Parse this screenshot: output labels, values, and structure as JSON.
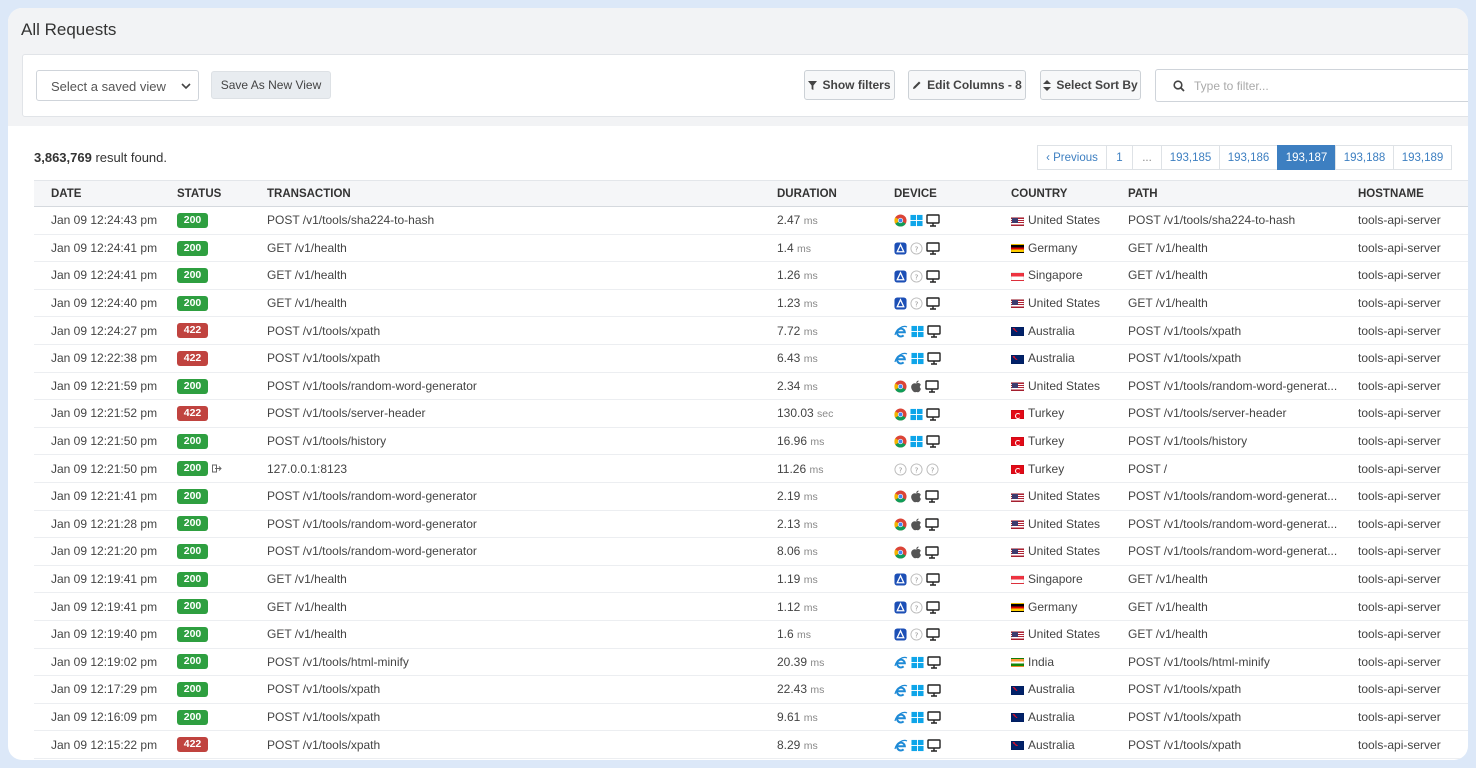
{
  "page": {
    "title": "All Requests"
  },
  "toolbar": {
    "saved_view_placeholder": "Select a saved view",
    "save_view_label": "Save As New View",
    "show_filters_label": "Show filters",
    "edit_columns_label": "Edit Columns - 8",
    "sort_label": "Select Sort By",
    "filter_placeholder": "Type to filter..."
  },
  "results": {
    "count": "3,863,769",
    "suffix": " result found."
  },
  "pagination": {
    "previous": "‹ Previous",
    "pages": [
      "1",
      "...",
      "193,185",
      "193,186",
      "193,187",
      "193,188",
      "193,189"
    ],
    "active": "193,187"
  },
  "table": {
    "columns": [
      "DATE",
      "STATUS",
      "TRANSACTION",
      "DURATION",
      "DEVICE",
      "COUNTRY",
      "PATH",
      "HOSTNAME"
    ],
    "rows": [
      {
        "date": "Jan 09 12:24:43 pm",
        "status": "200",
        "transaction": "POST /v1/tools/sha224-to-hash",
        "duration": "2.47",
        "unit": "ms",
        "device": [
          "chrome-icon",
          "windows-icon",
          "desktop-icon"
        ],
        "flag": "us",
        "country": "United States",
        "path": "POST /v1/tools/sha224-to-hash",
        "hostname": "tools-api-server"
      },
      {
        "date": "Jan 09 12:24:41 pm",
        "status": "200",
        "transaction": "GET /v1/health",
        "duration": "1.4",
        "unit": "ms",
        "device": [
          "app-icon",
          "unknown-icon",
          "desktop-icon"
        ],
        "flag": "de",
        "country": "Germany",
        "path": "GET /v1/health",
        "hostname": "tools-api-server"
      },
      {
        "date": "Jan 09 12:24:41 pm",
        "status": "200",
        "transaction": "GET /v1/health",
        "duration": "1.26",
        "unit": "ms",
        "device": [
          "app-icon",
          "unknown-icon",
          "desktop-icon"
        ],
        "flag": "sg",
        "country": "Singapore",
        "path": "GET /v1/health",
        "hostname": "tools-api-server"
      },
      {
        "date": "Jan 09 12:24:40 pm",
        "status": "200",
        "transaction": "GET /v1/health",
        "duration": "1.23",
        "unit": "ms",
        "device": [
          "app-icon",
          "unknown-icon",
          "desktop-icon"
        ],
        "flag": "us",
        "country": "United States",
        "path": "GET /v1/health",
        "hostname": "tools-api-server"
      },
      {
        "date": "Jan 09 12:24:27 pm",
        "status": "422",
        "transaction": "POST /v1/tools/xpath",
        "duration": "7.72",
        "unit": "ms",
        "device": [
          "ie-icon",
          "windows-icon",
          "desktop-icon"
        ],
        "flag": "au",
        "country": "Australia",
        "path": "POST /v1/tools/xpath",
        "hostname": "tools-api-server"
      },
      {
        "date": "Jan 09 12:22:38 pm",
        "status": "422",
        "transaction": "POST /v1/tools/xpath",
        "duration": "6.43",
        "unit": "ms",
        "device": [
          "ie-icon",
          "windows-icon",
          "desktop-icon"
        ],
        "flag": "au",
        "country": "Australia",
        "path": "POST /v1/tools/xpath",
        "hostname": "tools-api-server"
      },
      {
        "date": "Jan 09 12:21:59 pm",
        "status": "200",
        "transaction": "POST /v1/tools/random-word-generator",
        "duration": "2.34",
        "unit": "ms",
        "device": [
          "chrome-icon",
          "apple-icon",
          "desktop-icon"
        ],
        "flag": "us",
        "country": "United States",
        "path": "POST /v1/tools/random-word-generat...",
        "hostname": "tools-api-server"
      },
      {
        "date": "Jan 09 12:21:52 pm",
        "status": "422",
        "transaction": "POST /v1/tools/server-header",
        "duration": "130.03",
        "unit": "sec",
        "device": [
          "chrome-icon",
          "windows-icon",
          "desktop-icon"
        ],
        "flag": "tr",
        "country": "Turkey",
        "path": "POST /v1/tools/server-header",
        "hostname": "tools-api-server"
      },
      {
        "date": "Jan 09 12:21:50 pm",
        "status": "200",
        "transaction": "POST /v1/tools/history",
        "duration": "16.96",
        "unit": "ms",
        "device": [
          "chrome-icon",
          "windows-icon",
          "desktop-icon"
        ],
        "flag": "tr",
        "country": "Turkey",
        "path": "POST /v1/tools/history",
        "hostname": "tools-api-server"
      },
      {
        "date": "Jan 09 12:21:50 pm",
        "status": "200",
        "redirect": true,
        "transaction": "127.0.0.1:8123",
        "duration": "11.26",
        "unit": "ms",
        "device": [
          "unknown-icon",
          "unknown-icon",
          "unknown-icon"
        ],
        "flag": "tr",
        "country": "Turkey",
        "path": "POST /",
        "hostname": "tools-api-server"
      },
      {
        "date": "Jan 09 12:21:41 pm",
        "status": "200",
        "transaction": "POST /v1/tools/random-word-generator",
        "duration": "2.19",
        "unit": "ms",
        "device": [
          "chrome-icon",
          "apple-icon",
          "desktop-icon"
        ],
        "flag": "us",
        "country": "United States",
        "path": "POST /v1/tools/random-word-generat...",
        "hostname": "tools-api-server"
      },
      {
        "date": "Jan 09 12:21:28 pm",
        "status": "200",
        "transaction": "POST /v1/tools/random-word-generator",
        "duration": "2.13",
        "unit": "ms",
        "device": [
          "chrome-icon",
          "apple-icon",
          "desktop-icon"
        ],
        "flag": "us",
        "country": "United States",
        "path": "POST /v1/tools/random-word-generat...",
        "hostname": "tools-api-server"
      },
      {
        "date": "Jan 09 12:21:20 pm",
        "status": "200",
        "transaction": "POST /v1/tools/random-word-generator",
        "duration": "8.06",
        "unit": "ms",
        "device": [
          "chrome-icon",
          "apple-icon",
          "desktop-icon"
        ],
        "flag": "us",
        "country": "United States",
        "path": "POST /v1/tools/random-word-generat...",
        "hostname": "tools-api-server"
      },
      {
        "date": "Jan 09 12:19:41 pm",
        "status": "200",
        "transaction": "GET /v1/health",
        "duration": "1.19",
        "unit": "ms",
        "device": [
          "app-icon",
          "unknown-icon",
          "desktop-icon"
        ],
        "flag": "sg",
        "country": "Singapore",
        "path": "GET /v1/health",
        "hostname": "tools-api-server"
      },
      {
        "date": "Jan 09 12:19:41 pm",
        "status": "200",
        "transaction": "GET /v1/health",
        "duration": "1.12",
        "unit": "ms",
        "device": [
          "app-icon",
          "unknown-icon",
          "desktop-icon"
        ],
        "flag": "de",
        "country": "Germany",
        "path": "GET /v1/health",
        "hostname": "tools-api-server"
      },
      {
        "date": "Jan 09 12:19:40 pm",
        "status": "200",
        "transaction": "GET /v1/health",
        "duration": "1.6",
        "unit": "ms",
        "device": [
          "app-icon",
          "unknown-icon",
          "desktop-icon"
        ],
        "flag": "us",
        "country": "United States",
        "path": "GET /v1/health",
        "hostname": "tools-api-server"
      },
      {
        "date": "Jan 09 12:19:02 pm",
        "status": "200",
        "transaction": "POST /v1/tools/html-minify",
        "duration": "20.39",
        "unit": "ms",
        "device": [
          "ie-icon",
          "windows-icon",
          "desktop-icon"
        ],
        "flag": "in",
        "country": "India",
        "path": "POST /v1/tools/html-minify",
        "hostname": "tools-api-server"
      },
      {
        "date": "Jan 09 12:17:29 pm",
        "status": "200",
        "transaction": "POST /v1/tools/xpath",
        "duration": "22.43",
        "unit": "ms",
        "device": [
          "ie-icon",
          "windows-icon",
          "desktop-icon"
        ],
        "flag": "au",
        "country": "Australia",
        "path": "POST /v1/tools/xpath",
        "hostname": "tools-api-server"
      },
      {
        "date": "Jan 09 12:16:09 pm",
        "status": "200",
        "transaction": "POST /v1/tools/xpath",
        "duration": "9.61",
        "unit": "ms",
        "device": [
          "ie-icon",
          "windows-icon",
          "desktop-icon"
        ],
        "flag": "au",
        "country": "Australia",
        "path": "POST /v1/tools/xpath",
        "hostname": "tools-api-server"
      },
      {
        "date": "Jan 09 12:15:22 pm",
        "status": "422",
        "transaction": "POST /v1/tools/xpath",
        "duration": "8.29",
        "unit": "ms",
        "device": [
          "ie-icon",
          "windows-icon",
          "desktop-icon"
        ],
        "flag": "au",
        "country": "Australia",
        "path": "POST /v1/tools/xpath",
        "hostname": "tools-api-server"
      }
    ]
  },
  "colors": {
    "accent": "#3d7fc1",
    "success": "#2e9f40",
    "error": "#c0433f"
  }
}
